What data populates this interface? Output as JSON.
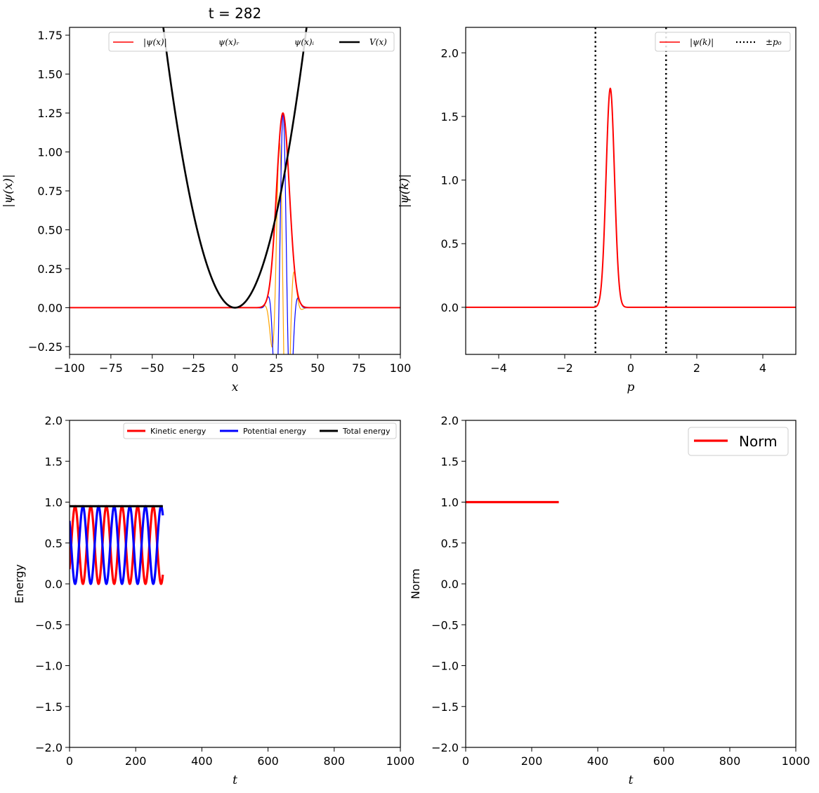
{
  "chart_data": [
    {
      "id": "psi_x",
      "type": "line",
      "title": "t = 282",
      "xlabel": "x",
      "ylabel": "|ψ(x)|",
      "xlim": [
        -100,
        100
      ],
      "ylim": [
        -0.3,
        1.8
      ],
      "xticks": [
        -100,
        -75,
        -50,
        -25,
        0,
        25,
        50,
        75,
        100
      ],
      "xtick_labels": [
        "−100",
        "−75",
        "−50",
        "−25",
        "0",
        "25",
        "50",
        "75",
        "100"
      ],
      "yticks": [
        -0.25,
        0,
        0.25,
        0.5,
        0.75,
        1.0,
        1.25,
        1.5,
        1.75
      ],
      "ytick_labels": [
        "−0.25",
        "0.00",
        "0.25",
        "0.50",
        "0.75",
        "1.00",
        "1.25",
        "1.50",
        "1.75"
      ],
      "legend_position": "top-right",
      "series": [
        {
          "name": "|ψ(x)|",
          "color": "#ff0000",
          "kind": "abs",
          "center": 29,
          "amplitude": 1.25,
          "width": 5.5
        },
        {
          "name": "ψ(x)ᵣ",
          "color": "#ffa500",
          "kind": "real",
          "center": 29,
          "amplitude": 1.25,
          "width": 5.5,
          "wavenumber": 0.62,
          "phase": 1.5
        },
        {
          "name": "ψ(x)ᵢ",
          "color": "#0000ff",
          "kind": "imag",
          "center": 29,
          "amplitude": 1.25,
          "width": 5.5,
          "wavenumber": 0.62,
          "phase": 1.5
        },
        {
          "name": "V(x)",
          "color": "#000000",
          "kind": "potential",
          "coefficient": 0.00096
        }
      ]
    },
    {
      "id": "psi_k",
      "type": "line",
      "title": "",
      "xlabel": "p",
      "ylabel": "|ψ(k)|",
      "xlim": [
        -5,
        5
      ],
      "ylim": [
        -0.37,
        2.2
      ],
      "xticks": [
        -4,
        -2,
        0,
        2,
        4
      ],
      "xtick_labels": [
        "−4",
        "−2",
        "0",
        "2",
        "4"
      ],
      "yticks": [
        0.0,
        0.5,
        1.0,
        1.5,
        2.0
      ],
      "ytick_labels": [
        "0.0",
        "0.5",
        "1.0",
        "1.5",
        "2.0"
      ],
      "legend_position": "top-right",
      "series": [
        {
          "name": "|ψ(k)|",
          "color": "#ff0000",
          "kind": "gaussian",
          "center": -0.62,
          "amplitude": 1.72,
          "width": 0.18
        },
        {
          "name": "±p₀",
          "color": "#000000",
          "kind": "vlines",
          "positions": [
            -1.07,
            1.07
          ]
        }
      ]
    },
    {
      "id": "energy",
      "type": "line",
      "title": "",
      "xlabel": "t",
      "ylabel": "Energy",
      "xlim": [
        0,
        1000
      ],
      "ylim": [
        -2.0,
        2.0
      ],
      "xticks": [
        0,
        200,
        400,
        600,
        800,
        1000
      ],
      "xtick_labels": [
        "0",
        "200",
        "400",
        "600",
        "800",
        "1000"
      ],
      "yticks": [
        -2.0,
        -1.5,
        -1.0,
        -0.5,
        0.0,
        0.5,
        1.0,
        1.5,
        2.0
      ],
      "ytick_labels": [
        "−2.0",
        "−1.5",
        "−1.0",
        "−0.5",
        "0.0",
        "0.5",
        "1.0",
        "1.5",
        "2.0"
      ],
      "legend_position": "top-right",
      "t_end": 282,
      "period": 94.5,
      "series": [
        {
          "name": "Kinetic energy",
          "color": "#ff0000",
          "kind": "kinetic",
          "total": 0.95,
          "phase": 0.45
        },
        {
          "name": "Potential energy",
          "color": "#0000ff",
          "kind": "potential",
          "total": 0.95,
          "phase": 0.45
        },
        {
          "name": "Total energy",
          "color": "#000000",
          "kind": "constant",
          "value": 0.95
        }
      ]
    },
    {
      "id": "norm",
      "type": "line",
      "title": "",
      "xlabel": "t",
      "ylabel": "Norm",
      "xlim": [
        0,
        1000
      ],
      "ylim": [
        -2.0,
        2.0
      ],
      "xticks": [
        0,
        200,
        400,
        600,
        800,
        1000
      ],
      "xtick_labels": [
        "0",
        "200",
        "400",
        "600",
        "800",
        "1000"
      ],
      "yticks": [
        -2.0,
        -1.5,
        -1.0,
        -0.5,
        0.0,
        0.5,
        1.0,
        1.5,
        2.0
      ],
      "ytick_labels": [
        "−2.0",
        "−1.5",
        "−1.0",
        "−0.5",
        "0.0",
        "0.5",
        "1.0",
        "1.5",
        "2.0"
      ],
      "legend_position": "top-right",
      "t_end": 282,
      "series": [
        {
          "name": "Norm",
          "color": "#ff0000",
          "kind": "constant",
          "value": 1.0
        }
      ]
    }
  ]
}
